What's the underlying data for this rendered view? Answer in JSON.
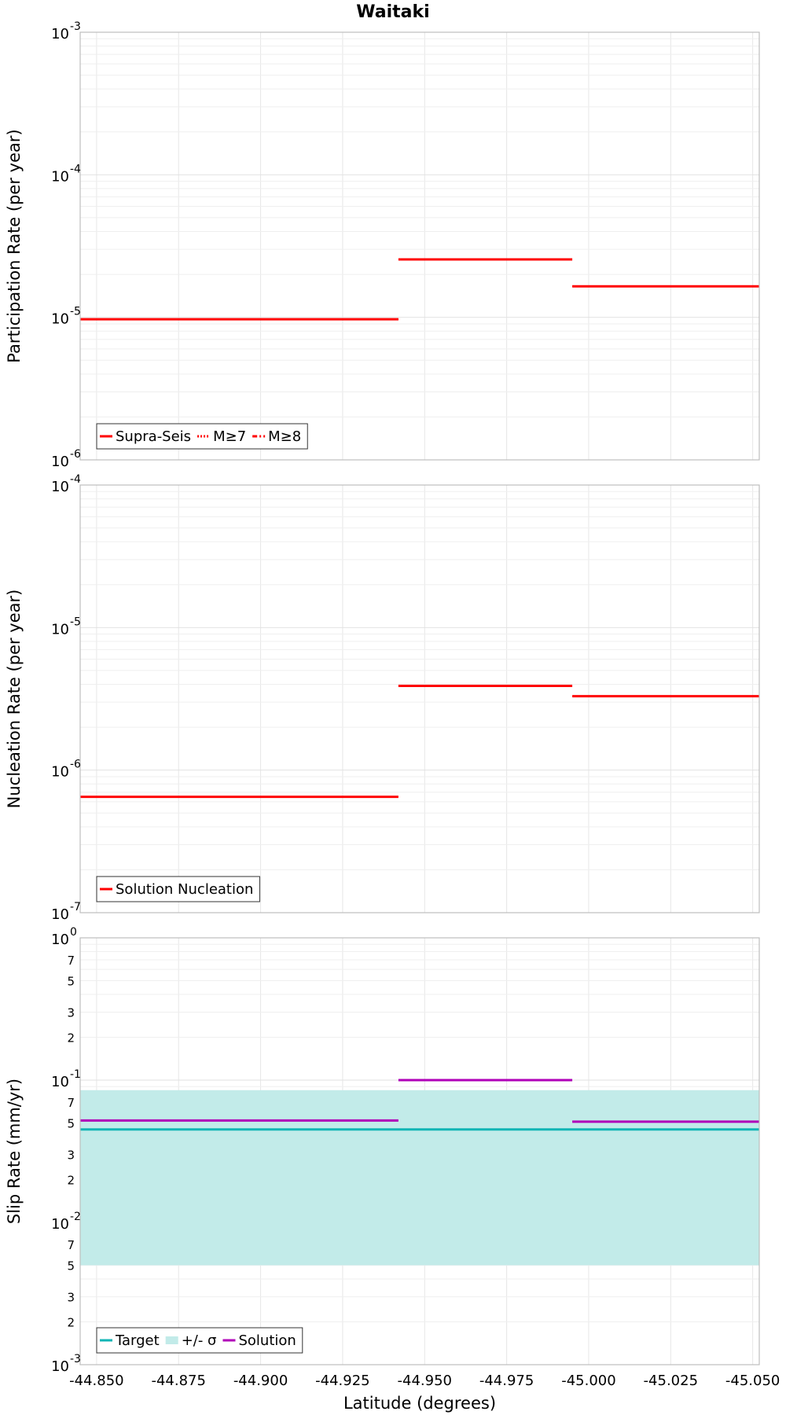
{
  "chart_data": [
    {
      "type": "line",
      "title": "Waitaki",
      "ylabel": "Participation Rate (per year)",
      "yscale": "log",
      "ylim": [
        1e-06,
        0.001
      ],
      "ytick_exponents": [
        -6,
        -5,
        -4,
        -3
      ],
      "xlim": [
        -44.845,
        -45.052
      ],
      "legend": "bottom-left",
      "series": [
        {
          "name": "Supra-Seis",
          "color": "#ff0000",
          "style": "solid",
          "segments": [
            {
              "x": [
                -44.845,
                -44.942
              ],
              "y": 9.7e-06
            },
            {
              "x": [
                -44.942,
                -44.995
              ],
              "y": 2.55e-05
            },
            {
              "x": [
                -44.995,
                -45.052
              ],
              "y": 1.65e-05
            }
          ]
        },
        {
          "name": "M≥7",
          "color": "#ff0000",
          "style": "dotted",
          "segments": [
            {
              "x": [
                -44.845,
                -44.942
              ],
              "y": 9.7e-06
            },
            {
              "x": [
                -44.995,
                -45.052
              ],
              "y": 1.65e-05
            }
          ]
        },
        {
          "name": "M≥8",
          "color": "#ff0000",
          "style": "dashdot",
          "segments": []
        }
      ]
    },
    {
      "type": "line",
      "ylabel": "Nucleation Rate (per year)",
      "yscale": "log",
      "ylim": [
        1e-07,
        0.0001
      ],
      "ytick_exponents": [
        -7,
        -6,
        -5,
        -4
      ],
      "xlim": [
        -44.845,
        -45.052
      ],
      "legend": "bottom-left",
      "series": [
        {
          "name": "Solution Nucleation",
          "color": "#ff0000",
          "style": "solid",
          "segments": [
            {
              "x": [
                -44.845,
                -44.942
              ],
              "y": 6.5e-07
            },
            {
              "x": [
                -44.942,
                -44.995
              ],
              "y": 3.9e-06
            },
            {
              "x": [
                -44.995,
                -45.052
              ],
              "y": 3.3e-06
            }
          ]
        }
      ]
    },
    {
      "type": "line",
      "ylabel": "Slip Rate (mm/yr)",
      "xlabel": "Latitude (degrees)",
      "yscale": "log",
      "ylim": [
        0.001,
        1
      ],
      "ytick_exponents": [
        -3,
        -2,
        -1,
        0
      ],
      "minor_tick_labels": [
        "2",
        "3",
        "5",
        "7"
      ],
      "xlim": [
        -44.845,
        -45.052
      ],
      "xticks": [
        "-44.850",
        "-44.875",
        "-44.900",
        "-44.925",
        "-44.950",
        "-44.975",
        "-45.000",
        "-45.025",
        "-45.050"
      ],
      "legend": "bottom-left",
      "series": [
        {
          "name": "Target",
          "color": "#11b5b5",
          "style": "solid",
          "segments": [
            {
              "x": [
                -44.845,
                -45.052
              ],
              "y": 0.045
            }
          ]
        },
        {
          "name": "+/- σ",
          "color": "#c2ebe9",
          "style": "band",
          "band": {
            "x": [
              -44.845,
              -45.052
            ],
            "y0": 0.005,
            "y1": 0.085
          }
        },
        {
          "name": "Solution",
          "color": "#b000b8",
          "style": "solid",
          "segments": [
            {
              "x": [
                -44.845,
                -44.942
              ],
              "y": 0.052
            },
            {
              "x": [
                -44.942,
                -44.995
              ],
              "y": 0.1
            },
            {
              "x": [
                -44.995,
                -45.052
              ],
              "y": 0.051
            }
          ]
        }
      ]
    }
  ]
}
